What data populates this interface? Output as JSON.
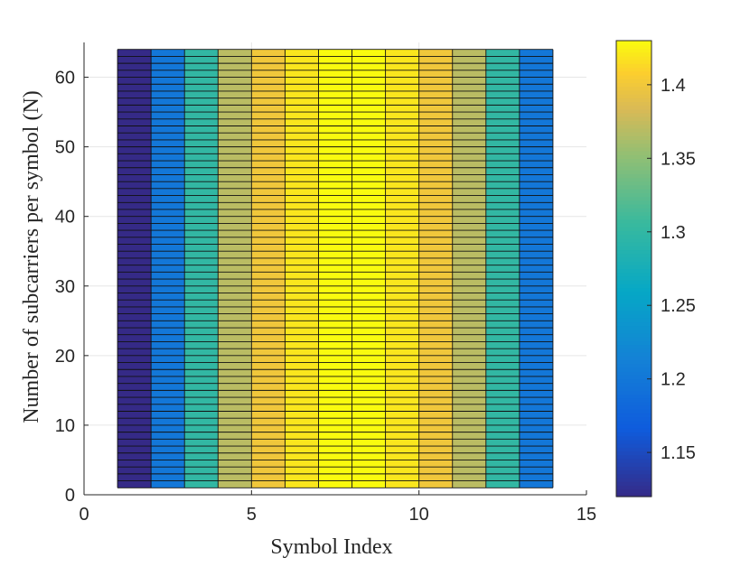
{
  "chart_data": {
    "type": "heatmap",
    "xlabel": "Symbol Index",
    "ylabel": "Number of subcarriers per symbol (N)",
    "xlim": [
      0,
      15
    ],
    "ylim": [
      0,
      65
    ],
    "xticks": [
      0,
      5,
      10,
      15
    ],
    "yticks": [
      0,
      10,
      20,
      30,
      40,
      50,
      60
    ],
    "grid": true,
    "x_edges": [
      1,
      2,
      3,
      4,
      5,
      6,
      7,
      8,
      9,
      10,
      11,
      12,
      13,
      14
    ],
    "y_edges": [
      1,
      64
    ],
    "y_step": 1,
    "column_values": [
      1.12,
      1.2,
      1.3,
      1.37,
      1.4,
      1.42,
      1.43,
      1.43,
      1.42,
      1.4,
      1.37,
      1.3,
      1.2
    ],
    "colorbar": {
      "range": [
        1.12,
        1.43
      ],
      "ticks": [
        1.15,
        1.2,
        1.25,
        1.3,
        1.35,
        1.4
      ],
      "tick_labels": [
        "1.15",
        "1.2",
        "1.25",
        "1.3",
        "1.35",
        "1.4"
      ],
      "colormap": "parula"
    }
  }
}
